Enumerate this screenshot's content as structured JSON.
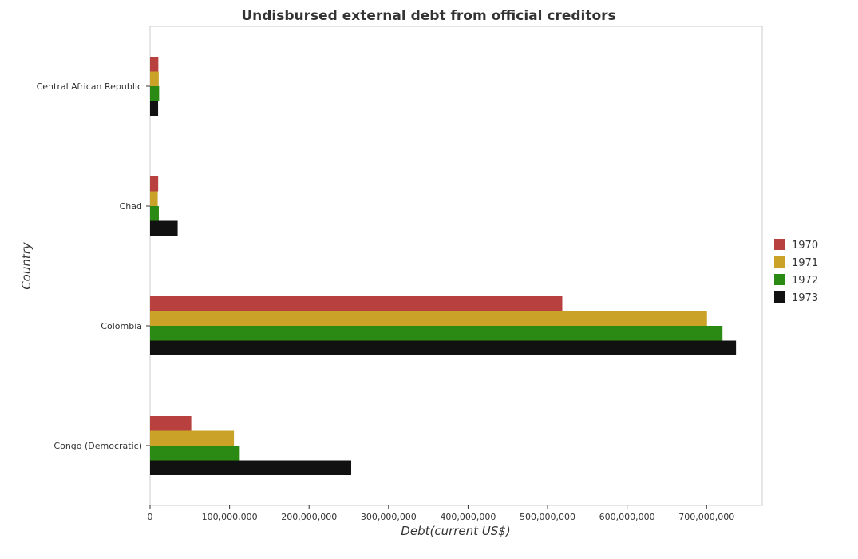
{
  "chart_data": {
    "type": "bar",
    "orientation": "horizontal",
    "title": "Undisbursed external debt from official creditors",
    "xlabel": "Debt(current US$)",
    "ylabel": "Country",
    "categories": [
      "Central African Republic",
      "Chad",
      "Colombia",
      "Congo (Democratic)"
    ],
    "series": [
      {
        "name": "1970",
        "color": "#b8413f",
        "values": [
          10400000,
          10200000,
          518500000,
          51800000
        ]
      },
      {
        "name": "1971",
        "color": "#c9a227",
        "values": [
          10900000,
          9600000,
          700500000,
          105500000
        ]
      },
      {
        "name": "1972",
        "color": "#2b8a13",
        "values": [
          11400000,
          11000000,
          720000000,
          112800000
        ]
      },
      {
        "name": "1973",
        "color": "#111111",
        "values": [
          10100000,
          34700000,
          737000000,
          253000000
        ]
      }
    ],
    "xlim": [
      0,
      770000000
    ],
    "xticks": [
      0,
      100000000,
      200000000,
      300000000,
      400000000,
      500000000,
      600000000,
      700000000
    ],
    "xtick_labels": [
      "0",
      "100,000,000",
      "200,000,000",
      "300,000,000",
      "400,000,000",
      "500,000,000",
      "600,000,000",
      "700,000,000"
    ],
    "grid": false,
    "legend_position": "right"
  }
}
